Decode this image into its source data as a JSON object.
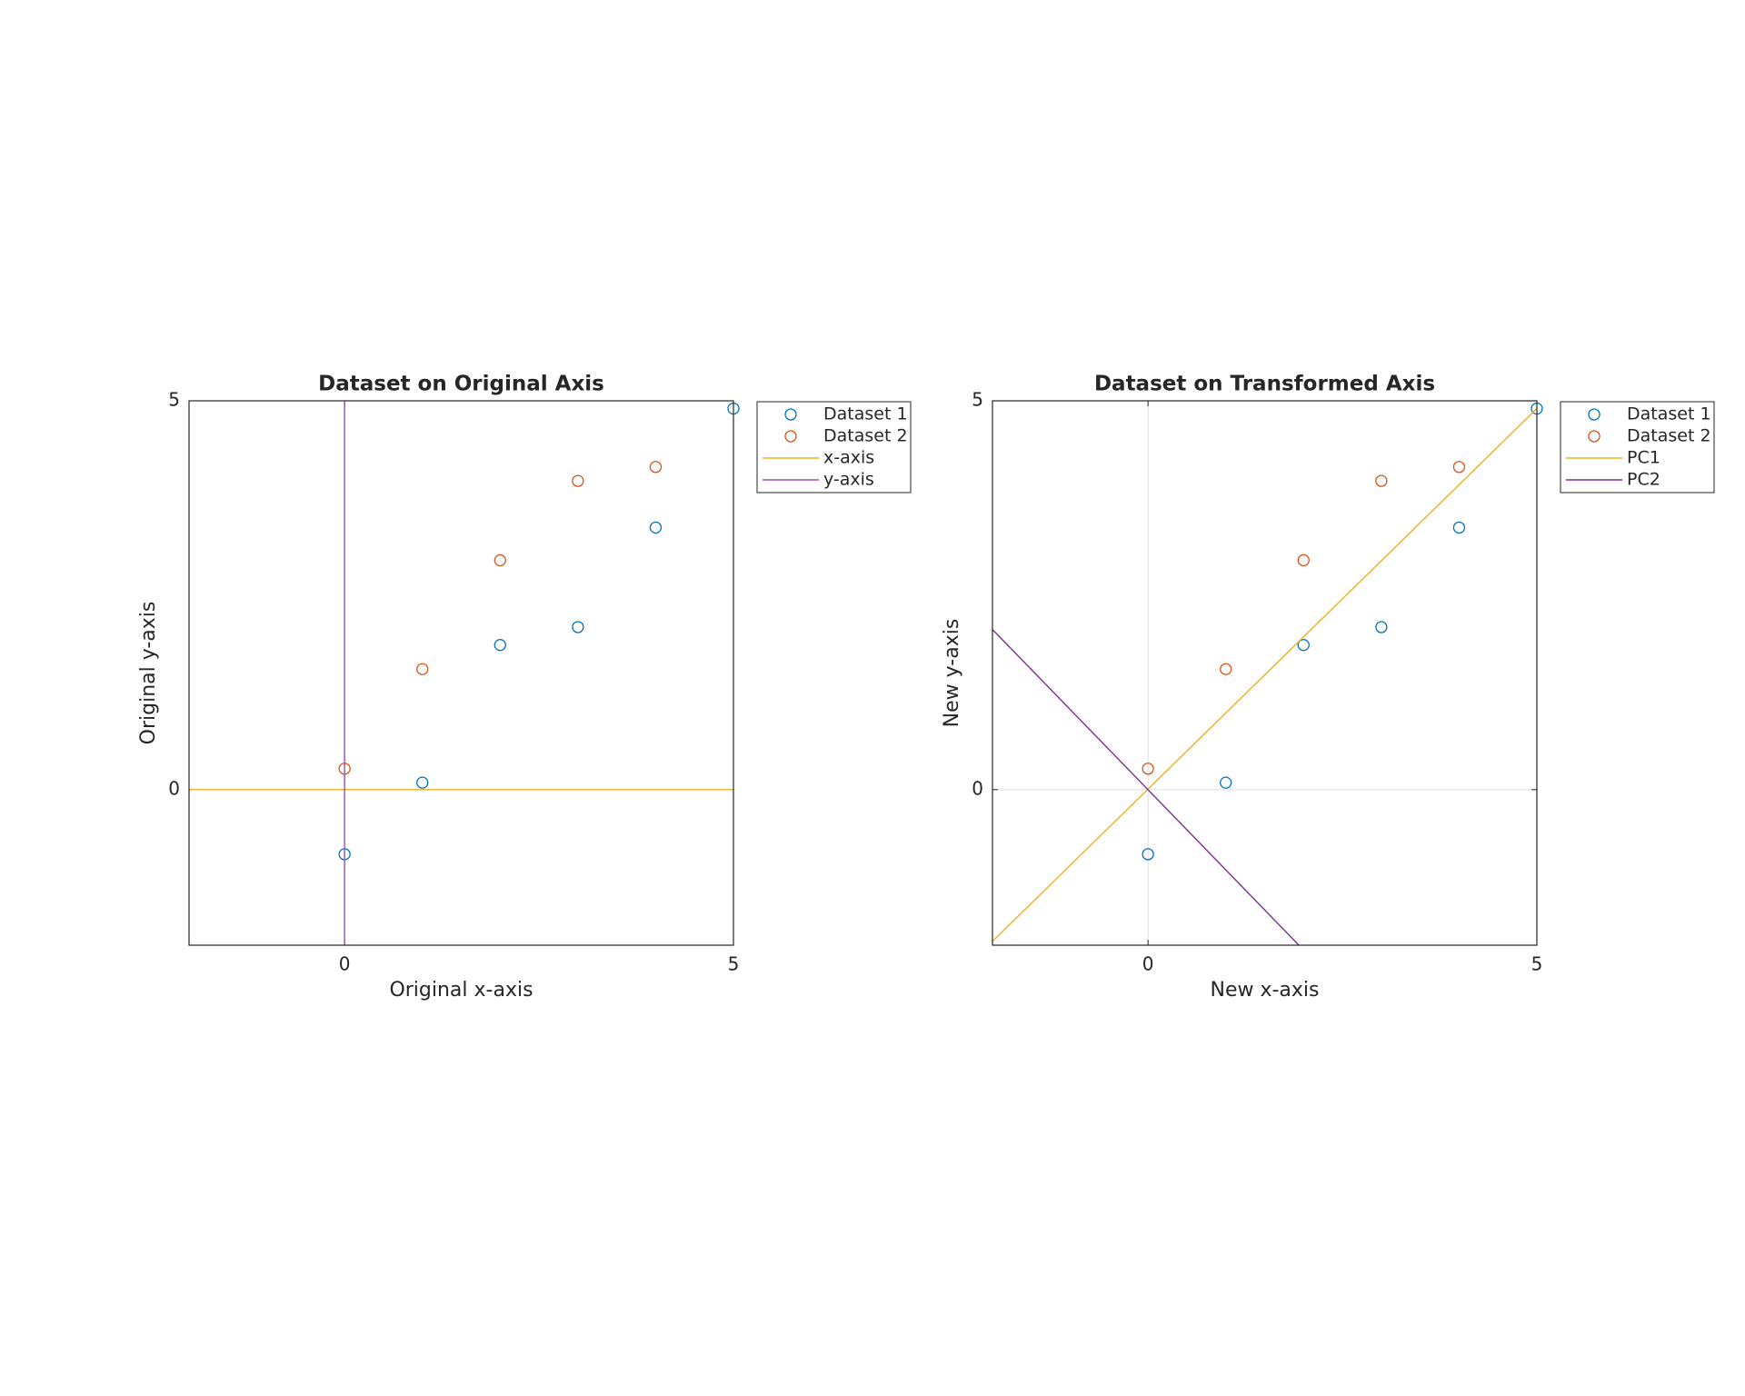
{
  "chart_data": [
    {
      "type": "scatter",
      "title": "Dataset on Original Axis",
      "xlabel": "Original x-axis",
      "ylabel": "Original y-axis",
      "xlim": [
        -2,
        5
      ],
      "ylim": [
        -2,
        5
      ],
      "xticks": [
        0,
        5
      ],
      "yticks": [
        0,
        5
      ],
      "grid": false,
      "legend": "northeastoutside",
      "series": [
        {
          "name": "Dataset 1",
          "color": "#0072bd",
          "style": "marker",
          "x": [
            0,
            1,
            2,
            3,
            4,
            5
          ],
          "values": [
            -0.83,
            0.09,
            1.86,
            2.09,
            3.37,
            4.9
          ]
        },
        {
          "name": "Dataset 2",
          "color": "#d95319",
          "style": "marker",
          "x": [
            0,
            1,
            2,
            3,
            4
          ],
          "values": [
            0.27,
            1.55,
            2.95,
            3.97,
            4.15
          ]
        },
        {
          "name": "x-axis",
          "color": "#edb120",
          "style": "line",
          "x": [
            -2,
            5
          ],
          "values": [
            0,
            0
          ]
        },
        {
          "name": "y-axis",
          "color": "#a24bb5",
          "style": "line",
          "x": [
            0,
            0
          ],
          "values": [
            -2,
            5
          ]
        }
      ]
    },
    {
      "type": "scatter",
      "title": "Dataset on Transformed Axis",
      "xlabel": "New x-axis",
      "ylabel": "New y-axis",
      "xlim": [
        -2,
        5
      ],
      "ylim": [
        -2,
        5
      ],
      "xticks": [
        0,
        5
      ],
      "yticks": [
        0,
        5
      ],
      "grid": true,
      "legend": "northeastoutside",
      "series": [
        {
          "name": "Dataset 1",
          "color": "#0072bd",
          "style": "marker",
          "x": [
            0,
            1,
            2,
            3,
            4,
            5
          ],
          "values": [
            -0.83,
            0.09,
            1.86,
            2.09,
            3.37,
            4.9
          ]
        },
        {
          "name": "Dataset 2",
          "color": "#d95319",
          "style": "marker",
          "x": [
            0,
            1,
            2,
            3,
            4
          ],
          "values": [
            0.27,
            1.55,
            2.95,
            3.97,
            4.15
          ]
        },
        {
          "name": "PC1",
          "color": "#edb120",
          "style": "line",
          "x": [
            -2,
            5
          ],
          "values": [
            -1.95,
            4.9
          ]
        },
        {
          "name": "PC2",
          "color": "#7e2f8e",
          "style": "line",
          "x": [
            -2,
            1.94
          ],
          "values": [
            2.06,
            -2
          ]
        }
      ]
    }
  ]
}
